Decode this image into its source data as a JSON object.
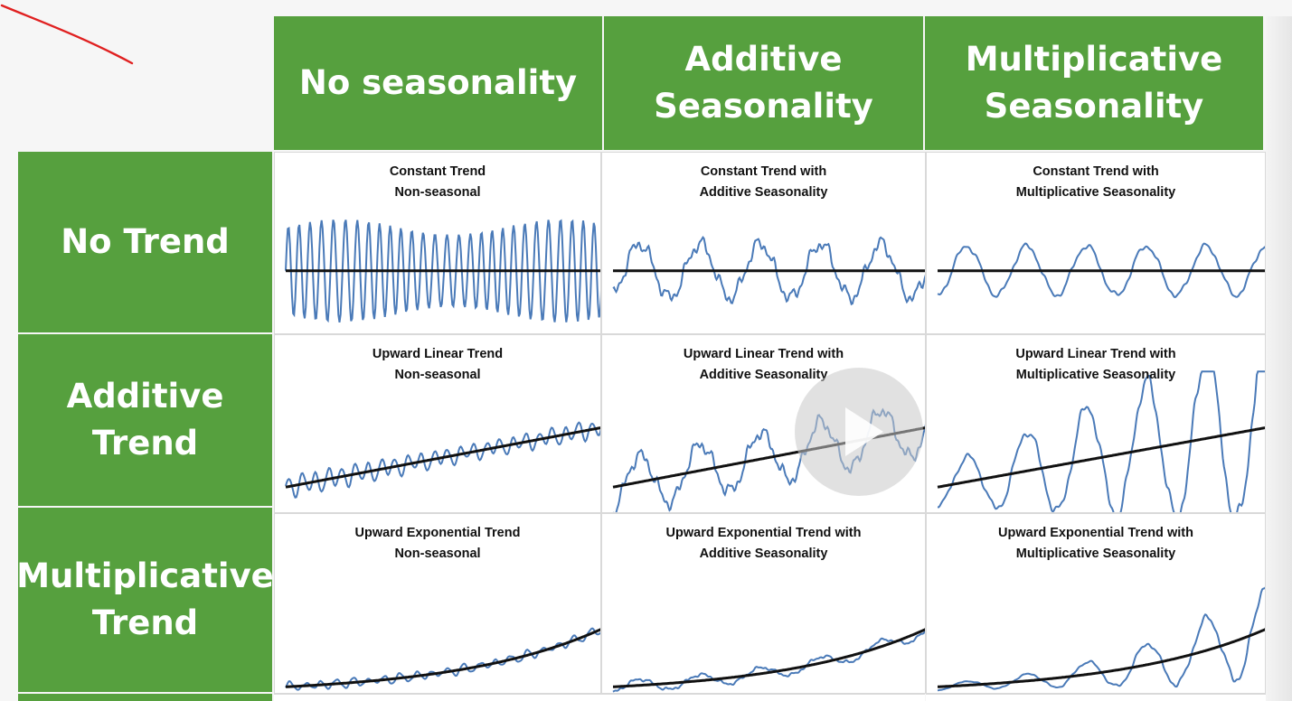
{
  "colors": {
    "header_green": "#56a03e",
    "series_blue": "#4a7ab8",
    "trend_black": "#111111",
    "annotation_red": "#e02020"
  },
  "column_headers": [
    "No seasonality",
    "Additive\nSeasonality",
    "Multiplicative\nSeasonality"
  ],
  "row_headers": [
    "No Trend",
    "Additive\nTrend",
    "Multiplicative\nTrend"
  ],
  "chart_data": [
    {
      "type": "line",
      "title": "Constant Trend\nNon-seasonal",
      "trend": "constant",
      "seasonality": "none"
    },
    {
      "type": "line",
      "title": "Constant Trend with\nAdditive Seasonality",
      "trend": "constant",
      "seasonality": "additive"
    },
    {
      "type": "line",
      "title": "Constant Trend with\nMultiplicative Seasonality",
      "trend": "constant",
      "seasonality": "multiplicative"
    },
    {
      "type": "line",
      "title": "Upward Linear Trend\nNon-seasonal",
      "trend": "linear",
      "seasonality": "none"
    },
    {
      "type": "line",
      "title": "Upward Linear Trend with\nAdditive Seasonality",
      "trend": "linear",
      "seasonality": "additive"
    },
    {
      "type": "line",
      "title": "Upward Linear Trend with\nMultiplicative Seasonality",
      "trend": "linear",
      "seasonality": "multiplicative"
    },
    {
      "type": "line",
      "title": "Upward Exponential Trend\nNon-seasonal",
      "trend": "exponential",
      "seasonality": "none"
    },
    {
      "type": "line",
      "title": "Upward Exponential Trend with\nAdditive Seasonality",
      "trend": "exponential",
      "seasonality": "additive"
    },
    {
      "type": "line",
      "title": "Upward Exponential Trend with\nMultiplicative Seasonality",
      "trend": "exponential",
      "seasonality": "multiplicative"
    }
  ],
  "icons": {
    "play": "play-icon",
    "annotation": "pen-annotation-stroke"
  }
}
